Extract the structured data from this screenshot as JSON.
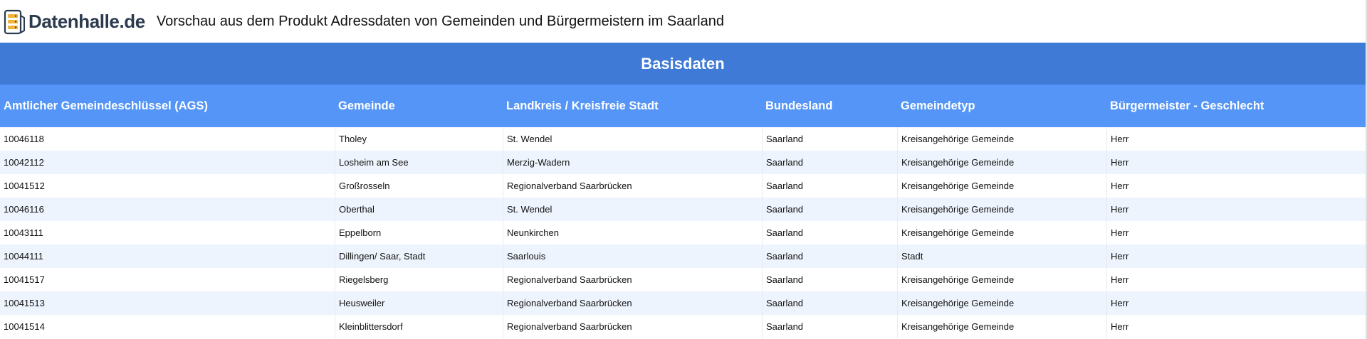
{
  "header": {
    "brand": "Datenhalle.de",
    "title": "Vorschau aus dem Produkt Adressdaten von Gemeinden und Bürgermeistern im Saarland"
  },
  "table": {
    "section": "Basisdaten",
    "columns": [
      "Amtlicher Gemeindeschlüssel (AGS)",
      "Gemeinde",
      "Landkreis / Kreisfreie Stadt",
      "Bundesland",
      "Gemeindetyp",
      "Bürgermeister - Geschlecht"
    ],
    "rows": [
      [
        "10046118",
        "Tholey",
        "St. Wendel",
        "Saarland",
        "Kreisangehörige Gemeinde",
        "Herr"
      ],
      [
        "10042112",
        "Losheim am See",
        "Merzig-Wadern",
        "Saarland",
        "Kreisangehörige Gemeinde",
        "Herr"
      ],
      [
        "10041512",
        "Großrosseln",
        "Regionalverband Saarbrücken",
        "Saarland",
        "Kreisangehörige Gemeinde",
        "Herr"
      ],
      [
        "10046116",
        "Oberthal",
        "St. Wendel",
        "Saarland",
        "Kreisangehörige Gemeinde",
        "Herr"
      ],
      [
        "10043111",
        "Eppelborn",
        "Neunkirchen",
        "Saarland",
        "Kreisangehörige Gemeinde",
        "Herr"
      ],
      [
        "10044111",
        "Dillingen/ Saar, Stadt",
        "Saarlouis",
        "Saarland",
        "Stadt",
        "Herr"
      ],
      [
        "10041517",
        "Riegelsberg",
        "Regionalverband Saarbrücken",
        "Saarland",
        "Kreisangehörige Gemeinde",
        "Herr"
      ],
      [
        "10041513",
        "Heusweiler",
        "Regionalverband Saarbrücken",
        "Saarland",
        "Kreisangehörige Gemeinde",
        "Herr"
      ],
      [
        "10041514",
        "Kleinblittersdorf",
        "Regionalverband Saarbrücken",
        "Saarland",
        "Kreisangehörige Gemeinde",
        "Herr"
      ]
    ]
  },
  "colors": {
    "section_band": "#3f7ad6",
    "column_header": "#5495f7",
    "row_alt": "#eef4fd",
    "brand_text": "#2b3a4d"
  },
  "icons": {
    "logo": "server-stack-logo-icon"
  }
}
